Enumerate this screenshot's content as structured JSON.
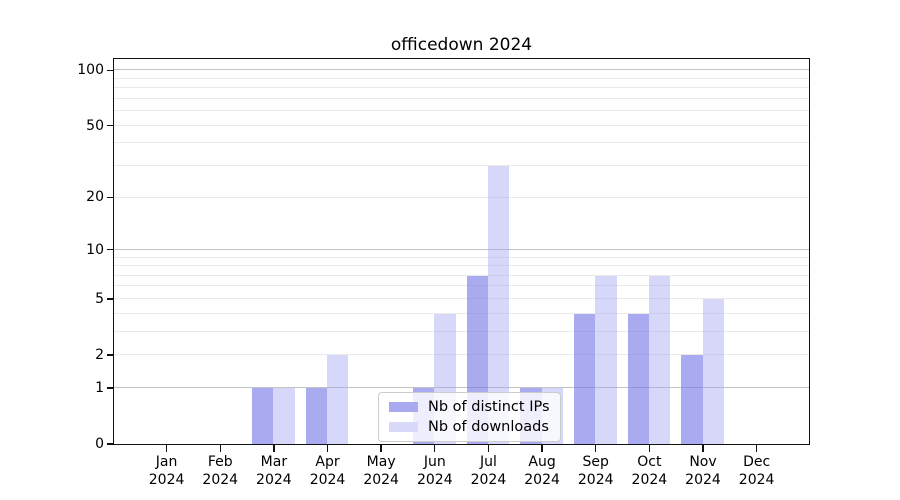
{
  "chart_data": {
    "type": "bar",
    "title": "officedown 2024",
    "categories": [
      {
        "month": "Jan",
        "year": "2024"
      },
      {
        "month": "Feb",
        "year": "2024"
      },
      {
        "month": "Mar",
        "year": "2024"
      },
      {
        "month": "Apr",
        "year": "2024"
      },
      {
        "month": "May",
        "year": "2024"
      },
      {
        "month": "Jun",
        "year": "2024"
      },
      {
        "month": "Jul",
        "year": "2024"
      },
      {
        "month": "Aug",
        "year": "2024"
      },
      {
        "month": "Sep",
        "year": "2024"
      },
      {
        "month": "Oct",
        "year": "2024"
      },
      {
        "month": "Nov",
        "year": "2024"
      },
      {
        "month": "Dec",
        "year": "2024"
      }
    ],
    "series": [
      {
        "name": "Nb of distinct IPs",
        "color": "#a9a9ef",
        "fill": "rgba(124,124,233,0.65)",
        "values": [
          0,
          0,
          1,
          1,
          0,
          1,
          7,
          1,
          4,
          4,
          2,
          0
        ]
      },
      {
        "name": "Nb of downloads",
        "color": "#d8d8f8",
        "fill": "rgba(160,160,242,0.42)",
        "values": [
          0,
          0,
          1,
          2,
          0,
          4,
          30,
          1,
          7,
          7,
          5,
          0
        ]
      }
    ],
    "yscale": "log1p",
    "ylim": [
      0,
      115
    ],
    "yticks": [
      0,
      1,
      2,
      5,
      10,
      20,
      50,
      100
    ],
    "gridlines_strong": [
      1,
      10,
      100
    ],
    "gridlines_light": [
      2,
      3,
      4,
      5,
      6,
      7,
      8,
      9,
      20,
      30,
      40,
      50,
      60,
      70,
      80,
      90
    ],
    "legend_position": "lower center",
    "grid": "on"
  },
  "colors": {
    "grid_strong": "#c3c3c3",
    "grid_light": "#eaeaea",
    "spine": "#111111",
    "legend_border": "#cccccc",
    "legend_bg": "rgba(255,255,255,0.8)"
  }
}
